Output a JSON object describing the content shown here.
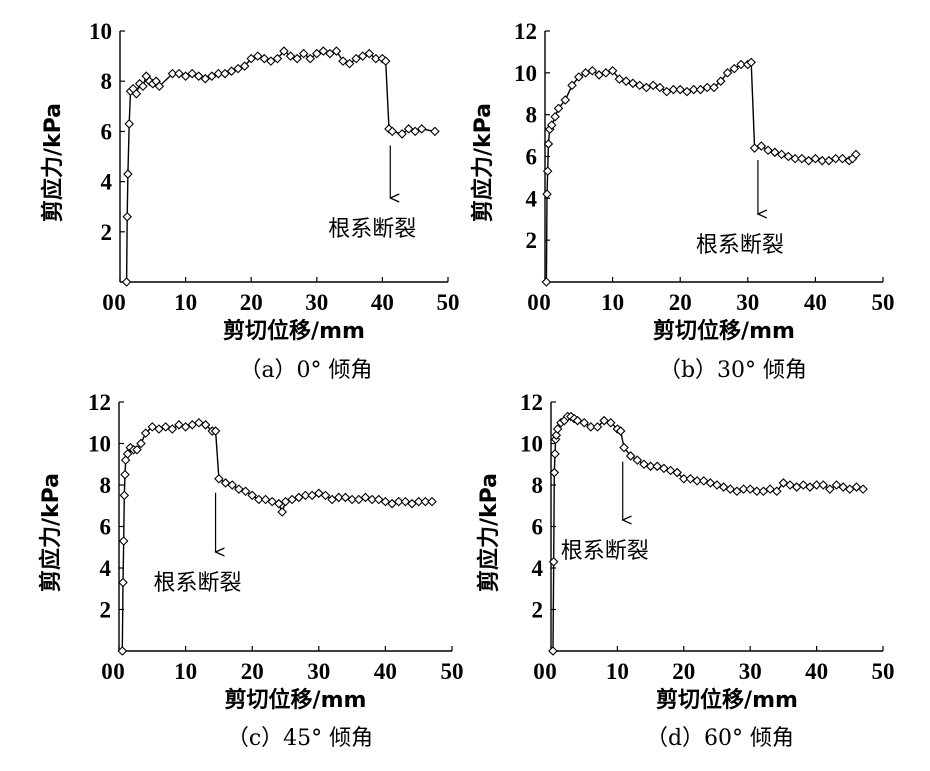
{
  "chart_data": [
    {
      "type": "line",
      "panel": "a",
      "caption": "（a）0°  倾角",
      "xlabel": "剪切位移/mm",
      "ylabel": "剪应力/kPa",
      "xlim": [
        0,
        50
      ],
      "ylim": [
        0,
        10
      ],
      "xticks": [
        0,
        10,
        20,
        30,
        40,
        50
      ],
      "yticks": [
        2,
        4,
        6,
        8,
        10
      ],
      "annotation": {
        "text": "根系断裂",
        "x": 41.2
      },
      "series": [
        {
          "name": "剪应力",
          "marker": "diamond",
          "x": [
            1.0,
            1.1,
            1.2,
            1.4,
            1.6,
            2.0,
            2.5,
            3.0,
            3.5,
            4.0,
            4.5,
            5.0,
            5.5,
            6.0,
            8,
            9,
            10,
            11,
            12,
            13,
            14,
            15,
            16,
            17,
            18,
            19,
            20,
            21,
            22,
            23,
            24,
            25,
            26,
            27,
            28,
            29,
            30,
            31,
            32,
            33,
            34,
            35,
            36,
            37,
            38,
            39,
            40,
            40.5,
            41,
            41.5,
            43,
            44,
            45,
            46,
            48
          ],
          "y": [
            0,
            2.6,
            4.3,
            6.3,
            7.6,
            7.7,
            7.5,
            7.9,
            7.8,
            8.2,
            8.0,
            7.9,
            8.0,
            7.8,
            8.3,
            8.3,
            8.2,
            8.3,
            8.2,
            8.1,
            8.2,
            8.3,
            8.3,
            8.4,
            8.5,
            8.6,
            8.9,
            9.0,
            8.9,
            8.8,
            8.9,
            9.2,
            9.0,
            8.9,
            9.1,
            8.9,
            9.1,
            9.2,
            9.1,
            9.2,
            8.8,
            8.7,
            8.9,
            9.0,
            9.1,
            8.9,
            8.9,
            8.8,
            6.1,
            6.0,
            5.9,
            6.1,
            6.0,
            6.1,
            6.0
          ]
        }
      ]
    },
    {
      "type": "line",
      "panel": "b",
      "caption": "（b）30°  倾角",
      "xlabel": "剪切位移/mm",
      "ylabel": "剪应力/kPa",
      "xlim": [
        0,
        50
      ],
      "ylim": [
        0,
        12
      ],
      "xticks": [
        0,
        10,
        20,
        30,
        40,
        50
      ],
      "yticks": [
        2,
        4,
        6,
        8,
        10,
        12
      ],
      "annotation": {
        "text": "根系断裂",
        "x": 31.5
      },
      "series": [
        {
          "name": "剪应力",
          "marker": "diamond",
          "x": [
            0.2,
            0.3,
            0.4,
            0.5,
            0.7,
            1.0,
            1.5,
            2,
            3,
            4,
            5,
            6,
            7,
            8,
            9,
            10,
            11,
            12,
            13,
            14,
            15,
            16,
            17,
            18,
            19,
            20,
            21,
            22,
            23,
            24,
            25,
            26,
            27,
            28,
            29,
            30,
            30.5,
            31,
            32,
            33,
            34,
            35,
            36,
            37,
            38,
            39,
            40,
            41,
            42,
            43,
            44,
            45,
            45.5,
            46
          ],
          "y": [
            0,
            4.2,
            5.3,
            6.6,
            7.3,
            7.5,
            7.9,
            8.3,
            8.7,
            9.4,
            9.8,
            10.0,
            10.1,
            9.9,
            10.0,
            10.1,
            9.7,
            9.6,
            9.5,
            9.4,
            9.3,
            9.4,
            9.3,
            9.1,
            9.2,
            9.2,
            9.1,
            9.2,
            9.2,
            9.3,
            9.3,
            9.6,
            10.0,
            10.2,
            10.4,
            10.4,
            10.5,
            6.4,
            6.5,
            6.3,
            6.2,
            6.1,
            6.0,
            5.9,
            5.9,
            5.8,
            5.9,
            5.8,
            5.8,
            5.9,
            5.9,
            5.8,
            5.9,
            6.1
          ]
        }
      ]
    },
    {
      "type": "line",
      "panel": "c",
      "caption": "（c）45°  倾角",
      "xlabel": "剪切位移/mm",
      "ylabel": "剪应力/kPa",
      "xlim": [
        0,
        50
      ],
      "ylim": [
        0,
        12
      ],
      "xticks": [
        0,
        10,
        20,
        30,
        40,
        50
      ],
      "yticks": [
        2,
        4,
        6,
        8,
        10,
        12
      ],
      "annotation": {
        "text": "根系断裂",
        "x": 14.5
      },
      "series": [
        {
          "name": "剪应力",
          "marker": "diamond",
          "x": [
            0.5,
            0.6,
            0.7,
            0.8,
            0.9,
            1.0,
            1.3,
            1.7,
            2.2,
            2.7,
            3.3,
            4,
            5,
            6,
            7,
            8,
            9,
            10,
            11,
            12,
            13,
            14,
            14.5,
            15,
            16,
            17,
            18,
            19,
            20,
            21,
            22,
            23,
            24,
            24.5,
            25,
            26,
            27,
            28,
            29,
            30,
            31,
            32,
            33,
            34,
            35,
            36,
            37,
            38,
            39,
            40,
            41,
            42,
            43,
            44,
            45,
            46,
            47
          ],
          "y": [
            0,
            3.3,
            5.3,
            7.5,
            8.5,
            9.2,
            9.5,
            9.8,
            9.7,
            9.7,
            10.0,
            10.5,
            10.8,
            10.7,
            10.8,
            10.7,
            10.9,
            10.8,
            10.9,
            11.0,
            10.9,
            10.6,
            10.6,
            8.3,
            8.1,
            8.0,
            7.8,
            7.7,
            7.5,
            7.3,
            7.3,
            7.2,
            7.1,
            6.7,
            7.2,
            7.3,
            7.4,
            7.5,
            7.5,
            7.6,
            7.5,
            7.3,
            7.4,
            7.4,
            7.3,
            7.3,
            7.4,
            7.3,
            7.3,
            7.2,
            7.1,
            7.2,
            7.2,
            7.1,
            7.2,
            7.2,
            7.2
          ]
        }
      ]
    },
    {
      "type": "line",
      "panel": "d",
      "caption": "（d）60°  倾角",
      "xlabel": "剪切位移/mm",
      "ylabel": "剪应力/kPa",
      "xlim": [
        0,
        50
      ],
      "ylim": [
        0,
        12
      ],
      "xticks": [
        0,
        10,
        20,
        30,
        40,
        50
      ],
      "yticks": [
        2,
        4,
        6,
        8,
        10,
        12
      ],
      "annotation": {
        "text": "根系断裂",
        "x": 10.8
      },
      "series": [
        {
          "name": "剪应力",
          "marker": "diamond",
          "x": [
            0.3,
            0.4,
            0.5,
            0.6,
            0.7,
            0.8,
            1.0,
            1.5,
            2.0,
            2.5,
            3,
            3.5,
            4,
            5,
            6,
            7,
            8,
            9,
            10,
            10.5,
            11,
            12,
            13,
            14,
            15,
            16,
            17,
            18,
            19,
            20,
            21,
            22,
            23,
            24,
            25,
            26,
            27,
            28,
            29,
            30,
            31,
            32,
            33,
            34,
            35,
            36,
            37,
            38,
            39,
            40,
            41,
            42,
            43,
            44,
            45,
            46,
            47
          ],
          "y": [
            0,
            4.3,
            8.6,
            9.5,
            10.2,
            10.4,
            10.7,
            11.0,
            11.1,
            11.3,
            11.3,
            11.2,
            11.1,
            11.0,
            10.8,
            10.8,
            11.1,
            11.0,
            10.7,
            10.6,
            9.8,
            9.4,
            9.2,
            9.0,
            8.9,
            8.9,
            8.8,
            8.7,
            8.6,
            8.3,
            8.3,
            8.2,
            8.2,
            8.1,
            8.0,
            7.9,
            7.8,
            7.7,
            7.8,
            7.8,
            7.7,
            7.7,
            7.8,
            7.7,
            8.1,
            8.0,
            7.9,
            8.0,
            7.9,
            8.0,
            8.0,
            7.8,
            8.0,
            7.9,
            7.8,
            7.9,
            7.8
          ]
        }
      ]
    }
  ]
}
